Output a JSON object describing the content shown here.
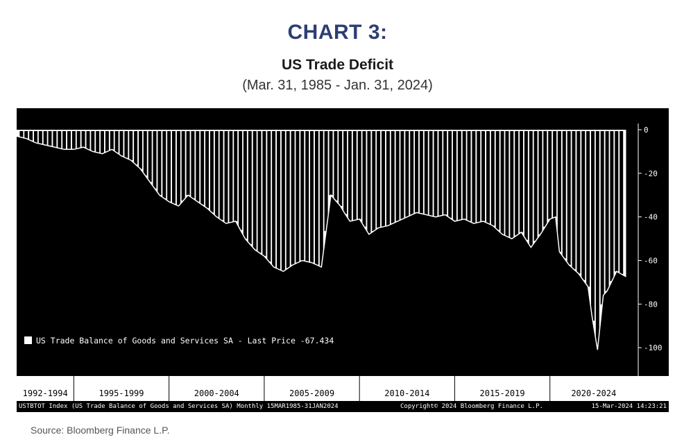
{
  "header": {
    "heading": "CHART 3:",
    "title": "US Trade Deficit",
    "subtitle": "(Mar. 31, 1985 - Jan. 31, 2024)"
  },
  "chart_data": {
    "type": "area",
    "legend": "US Trade Balance of Goods and Services SA - Last Price -67.434",
    "legend_position": "bottom-left",
    "yticks": [
      0,
      -20,
      -40,
      -60,
      -80,
      -100
    ],
    "ylim": [
      -113,
      0
    ],
    "xlim": [
      1992.0,
      2024.6
    ],
    "x_period_labels": [
      "1992-1994",
      "1995-1999",
      "2000-2004",
      "2005-2009",
      "2010-2014",
      "2015-2019",
      "2020-2024"
    ],
    "x_period_dividers": [
      1995.0,
      2000.0,
      2005.0,
      2010.0,
      2015.0,
      2020.0
    ],
    "background": "#000000",
    "series": [
      {
        "name": "US Trade Balance of Goods and Services SA",
        "color": "#ffffff",
        "x": [
          1992.0,
          1992.5,
          1993.0,
          1993.5,
          1994.0,
          1994.5,
          1995.0,
          1995.5,
          1996.0,
          1996.5,
          1997.0,
          1997.5,
          1998.0,
          1998.5,
          1999.0,
          1999.5,
          2000.0,
          2000.5,
          2001.0,
          2001.5,
          2002.0,
          2002.5,
          2003.0,
          2003.5,
          2004.0,
          2004.5,
          2005.0,
          2005.5,
          2006.0,
          2006.5,
          2007.0,
          2007.5,
          2008.0,
          2008.5,
          2009.0,
          2009.2,
          2009.5,
          2010.0,
          2010.5,
          2011.0,
          2011.5,
          2012.0,
          2012.5,
          2013.0,
          2013.5,
          2014.0,
          2014.5,
          2015.0,
          2015.5,
          2016.0,
          2016.5,
          2017.0,
          2017.5,
          2018.0,
          2018.5,
          2019.0,
          2019.5,
          2020.0,
          2020.3,
          2020.5,
          2021.0,
          2021.5,
          2022.0,
          2022.2,
          2022.5,
          2022.8,
          2023.0,
          2023.5,
          2024.0
        ],
        "values": [
          -3,
          -4,
          -6,
          -7,
          -8,
          -9,
          -9,
          -8,
          -10,
          -11,
          -9,
          -12,
          -14,
          -18,
          -24,
          -30,
          -33,
          -35,
          -30,
          -33,
          -36,
          -40,
          -43,
          -42,
          -50,
          -55,
          -58,
          -63,
          -65,
          -62,
          -60,
          -61,
          -63,
          -30,
          -35,
          -38,
          -42,
          -41,
          -48,
          -45,
          -44,
          -42,
          -40,
          -38,
          -39,
          -40,
          -39,
          -42,
          -41,
          -43,
          -42,
          -44,
          -48,
          -50,
          -47,
          -54,
          -48,
          -41,
          -40,
          -56,
          -62,
          -66,
          -72,
          -85,
          -101,
          -76,
          -74,
          -65,
          -67.434
        ]
      }
    ]
  },
  "footer": {
    "index_info": "USTBTOT Index (US Trade Balance of Goods and Services SA)  Monthly 15MAR1985-31JAN2024",
    "copyright": "Copyright© 2024 Bloomberg Finance L.P.",
    "timestamp": "15-Mar-2024 14:23:21",
    "source": "Source: Bloomberg Finance L.P."
  }
}
